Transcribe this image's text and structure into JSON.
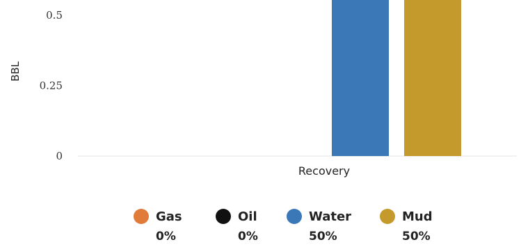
{
  "chart_data": {
    "type": "bar",
    "categories": [
      "Recovery"
    ],
    "series": [
      {
        "name": "Gas",
        "values": [
          0
        ],
        "color": "#e07b39",
        "percent_label": "0%"
      },
      {
        "name": "Oil",
        "values": [
          0
        ],
        "color": "#111111",
        "percent_label": "0%"
      },
      {
        "name": "Water",
        "values": [
          0.5
        ],
        "color": "#3a78b8",
        "percent_label": "50%"
      },
      {
        "name": "Mud",
        "values": [
          0.5
        ],
        "color": "#c49a2c",
        "percent_label": "50%"
      }
    ],
    "xlabel": "Recovery",
    "ylabel": "BBL",
    "yticks": [
      "0",
      "0.25",
      "0.5"
    ],
    "ylim": [
      0,
      0.5
    ],
    "legend_position": "bottom",
    "grid": false
  }
}
